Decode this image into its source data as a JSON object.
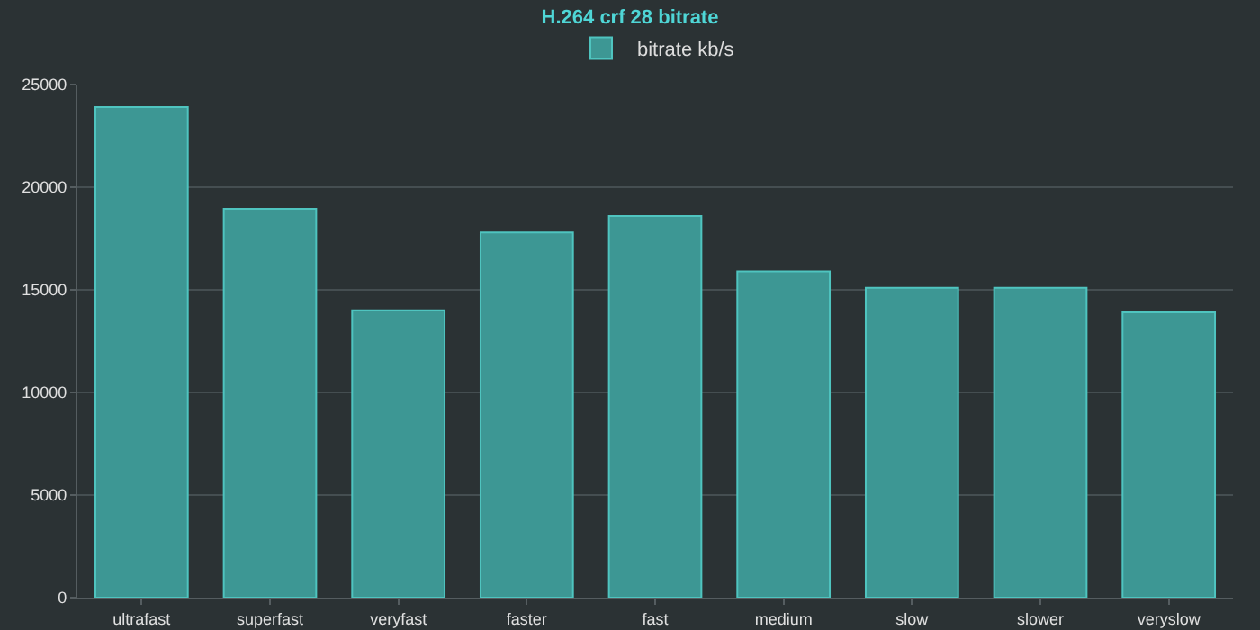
{
  "chart_data": {
    "type": "bar",
    "title": "H.264 crf 28 bitrate",
    "categories": [
      "ultrafast",
      "superfast",
      "veryfast",
      "faster",
      "fast",
      "medium",
      "slow",
      "slower",
      "veryslow"
    ],
    "series": [
      {
        "name": "bitrate kb/s",
        "color": "#3d9794",
        "values": [
          23900,
          18950,
          14000,
          17800,
          18600,
          15900,
          15100,
          15100,
          13900
        ]
      }
    ],
    "ylim": [
      0,
      25000
    ],
    "yticks": [
      0,
      5000,
      10000,
      15000,
      20000,
      25000
    ],
    "grid": "y",
    "legend": "top"
  }
}
